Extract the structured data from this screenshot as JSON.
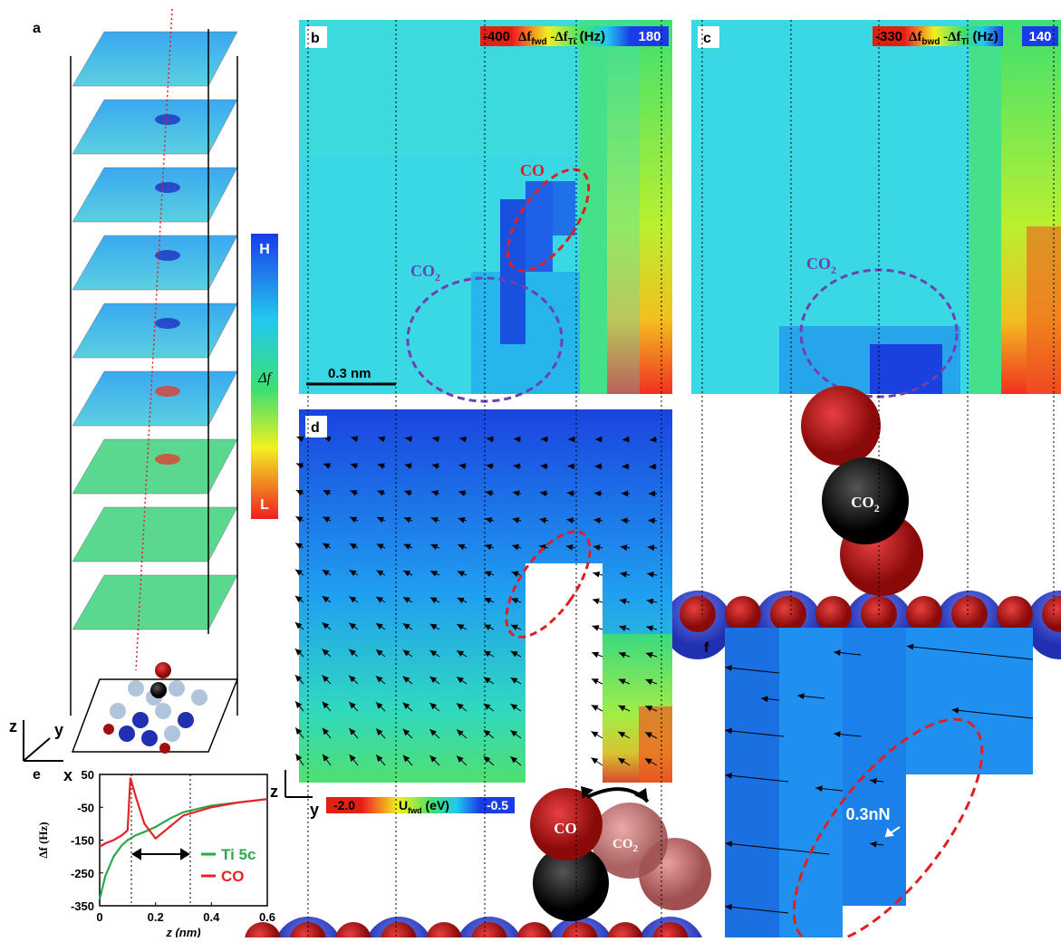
{
  "figure": {
    "panel_labels": [
      "a",
      "b",
      "c",
      "d",
      "e",
      "f"
    ],
    "a": {
      "colorbar_top": "H",
      "colorbar_mid": "Δf",
      "colorbar_bottom": "L",
      "axes": [
        "z",
        "y",
        "x"
      ]
    },
    "b": {
      "cbar_min": "-400",
      "cbar_label": [
        "Δf",
        "fwd",
        " -Δf",
        "Ti",
        " (Hz)"
      ],
      "cbar_max": "180",
      "co": "CO",
      "co2": [
        "CO",
        "2"
      ],
      "scale": "0.3 nm"
    },
    "c": {
      "cbar_min": "-330",
      "cbar_label": [
        "Δf",
        "bwd",
        " -Δf",
        "Ti",
        " (Hz)"
      ],
      "cbar_max": "140",
      "co2": [
        "CO",
        "2"
      ],
      "molecule": [
        "CO",
        "2"
      ]
    },
    "d": {
      "axes": [
        "z",
        "y"
      ],
      "cbar_min": "-2.0",
      "cbar_label": [
        "U",
        "fwd",
        " (eV)"
      ],
      "cbar_max": "-0.5",
      "co": "CO",
      "co2": [
        "CO",
        "2"
      ]
    },
    "f": {
      "force_label": "0.3nN"
    }
  },
  "chart_data": {
    "type": "line",
    "xlabel": "z (nm)",
    "ylabel": "Δf  (Hz)",
    "x": [
      0,
      0.02,
      0.05,
      0.08,
      0.1,
      0.11,
      0.13,
      0.16,
      0.2,
      0.25,
      0.3,
      0.4,
      0.5,
      0.6
    ],
    "series": [
      {
        "name": "Ti 5c",
        "color": "#2aa84a",
        "values": [
          -330,
          -260,
          -200,
          -165,
          -150,
          -145,
          -135,
          -125,
          -110,
          -85,
          -65,
          -45,
          -35,
          -25
        ]
      },
      {
        "name": "CO",
        "color": "#e8202a",
        "values": [
          -170,
          -160,
          -150,
          -135,
          -120,
          40,
          -20,
          -100,
          -145,
          -110,
          -75,
          -50,
          -35,
          -25
        ]
      }
    ],
    "xlim": [
      0,
      0.6
    ],
    "xticks": [
      0,
      0.2,
      0.4,
      0.6
    ],
    "ylim": [
      -350,
      50
    ],
    "yticks": [
      50,
      -50,
      -150,
      -250,
      -350
    ]
  }
}
